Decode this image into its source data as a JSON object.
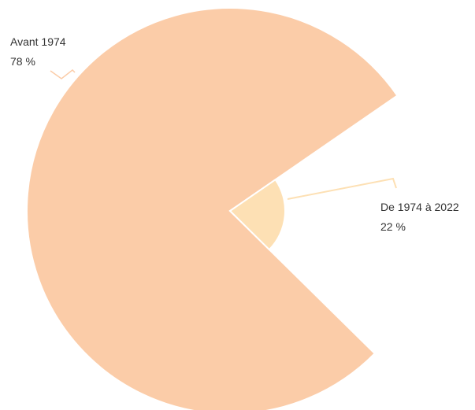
{
  "chart_data": {
    "type": "pie",
    "categories": [
      "Avant 1974",
      "De 1974 à 2022"
    ],
    "values": [
      78,
      22
    ],
    "value_labels": [
      "78 %",
      "22 %"
    ],
    "colors": [
      "#fbcca8",
      "#fde0b4"
    ]
  }
}
